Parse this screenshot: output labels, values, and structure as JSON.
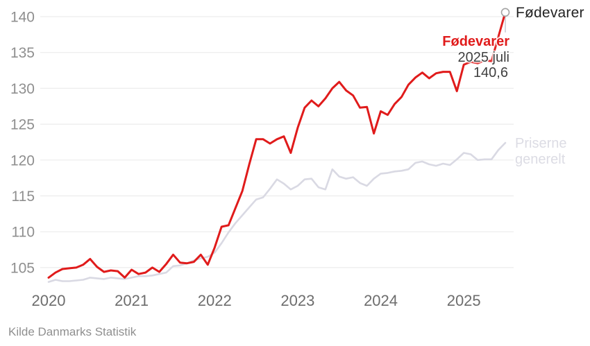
{
  "chart_data": {
    "type": "line",
    "title": "",
    "frequency": "monthly",
    "x_start": "2020 januar",
    "x_end": "2025 juli",
    "x_tick_labels": [
      "2020",
      "2021",
      "2022",
      "2023",
      "2024",
      "2025"
    ],
    "y_ticks": [
      105,
      110,
      115,
      120,
      125,
      130,
      135,
      140
    ],
    "ylim": [
      102.5,
      141.5
    ],
    "grid": "horizontal",
    "legend_position": "end-of-line",
    "series": [
      {
        "name": "Fødevarer",
        "color": "#e01b1b",
        "values": [
          103.6,
          104.3,
          104.8,
          104.9,
          105.0,
          105.4,
          106.2,
          105.1,
          104.4,
          104.6,
          104.5,
          103.6,
          104.7,
          104.1,
          104.3,
          105.0,
          104.4,
          105.5,
          106.8,
          105.7,
          105.6,
          105.8,
          106.8,
          105.4,
          107.8,
          110.7,
          110.9,
          113.3,
          115.7,
          119.4,
          122.9,
          122.9,
          122.3,
          122.9,
          123.3,
          121.0,
          124.5,
          127.3,
          128.3,
          127.5,
          128.6,
          130.0,
          130.9,
          129.7,
          129.0,
          127.3,
          127.4,
          123.7,
          126.8,
          126.3,
          127.8,
          128.8,
          130.5,
          131.5,
          132.2,
          131.4,
          132.1,
          132.3,
          132.3,
          129.6,
          133.3,
          133.7,
          133.5,
          133.9,
          133.8,
          137.2,
          140.6
        ]
      },
      {
        "name": "Priserne generelt",
        "color": "#d9d9e3",
        "values": [
          103.0,
          103.3,
          103.1,
          103.1,
          103.2,
          103.3,
          103.6,
          103.5,
          103.4,
          103.6,
          103.5,
          103.4,
          103.6,
          103.8,
          103.8,
          103.9,
          104.1,
          104.3,
          105.2,
          105.3,
          105.6,
          106.0,
          106.3,
          106.5,
          107.1,
          108.4,
          109.9,
          111.2,
          112.3,
          113.4,
          114.5,
          114.8,
          116.0,
          117.3,
          116.7,
          115.9,
          116.4,
          117.3,
          117.4,
          116.2,
          115.9,
          118.7,
          117.7,
          117.4,
          117.6,
          116.8,
          116.4,
          117.4,
          118.1,
          118.2,
          118.4,
          118.5,
          118.7,
          119.6,
          119.8,
          119.4,
          119.2,
          119.5,
          119.3,
          120.1,
          121.0,
          120.8,
          120.0,
          120.1,
          120.1,
          121.4,
          122.4
        ]
      }
    ]
  },
  "annotations": {
    "end_label": "Fødevarer"
  },
  "tooltip": {
    "series": "Fødevarer",
    "date": "2025 juli",
    "value": "140,6"
  },
  "series2_label": {
    "line1": "Priserne",
    "line2": "generelt"
  },
  "footer": {
    "source": "Kilde Danmarks Statistik"
  },
  "colors": {
    "highlight_line": "#e01b1b",
    "secondary_line": "#d9d9e3",
    "secondary_label": "#dcdce4",
    "grid": "#ececec",
    "y_tick_text": "#8f8f8f",
    "x_tick_text": "#6d6d6d",
    "marker_stroke": "#a3a3a3",
    "leader_line": "#c8c8d0",
    "tooltip_text": "#3f3f3f",
    "end_label_text": "#232323"
  }
}
